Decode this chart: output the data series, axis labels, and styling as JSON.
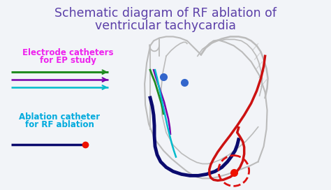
{
  "title_line1": "Schematic diagram of RF ablation of",
  "title_line2": "ventricular tachycardia",
  "title_color": "#5B3FA8",
  "bg_color": "#f2f4f8",
  "label1_text1": "Electrode catheters",
  "label1_text2": "for EP study",
  "label1_color": "#EE22EE",
  "label2_text1": "Ablation catheter",
  "label2_text2": "for RF ablation",
  "label2_color": "#00AADD",
  "heart_color": "#bbbbbb",
  "green_color": "#228B22",
  "purple_color": "#7700AA",
  "cyan_color": "#00BBCC",
  "navy_color": "#0A0A6E",
  "red_color": "#CC1111",
  "blue_dot_color": "#3366CC",
  "ablation_tip_color": "#EE1100",
  "dashed_circle_color": "#DD1111"
}
